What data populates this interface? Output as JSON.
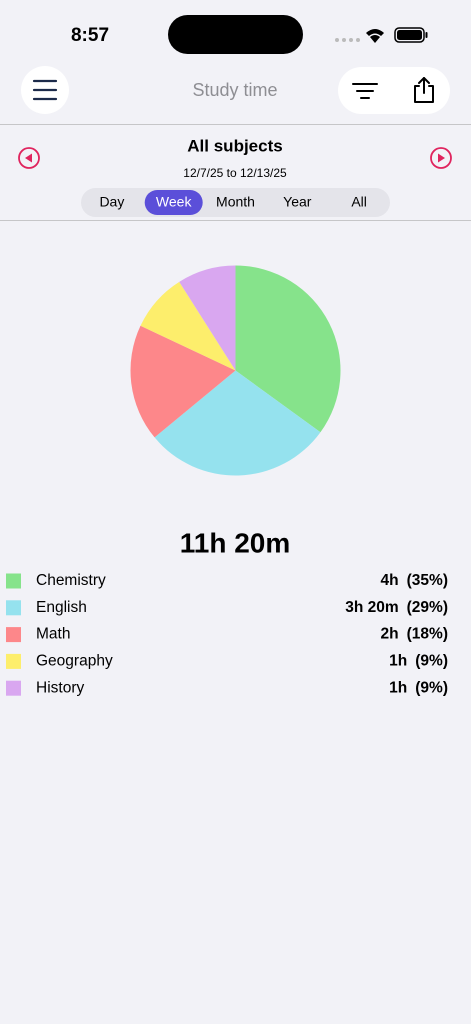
{
  "status_bar": {
    "time": "8:57"
  },
  "header": {
    "title": "Study time"
  },
  "selector": {
    "title": "All subjects",
    "date_range": "12/7/25 to 12/13/25",
    "periods": [
      "Day",
      "Week",
      "Month",
      "Year",
      "All"
    ],
    "selected": 1
  },
  "chart_data": {
    "type": "pie",
    "total": "11h 20m",
    "categories": [
      "Chemistry",
      "English",
      "Math",
      "Geography",
      "History"
    ],
    "values": [
      35,
      29,
      18,
      9,
      9
    ],
    "value_labels": [
      "(35%)",
      "(29%)",
      "(18%)",
      "(9%)",
      "(9%)"
    ],
    "durations": [
      "4h",
      "3h 20m",
      "2h",
      "1h",
      "1h"
    ],
    "colors": [
      "#86e38b",
      "#95e2ee",
      "#fd878a",
      "#fdee6c",
      "#d9a7f0"
    ]
  }
}
